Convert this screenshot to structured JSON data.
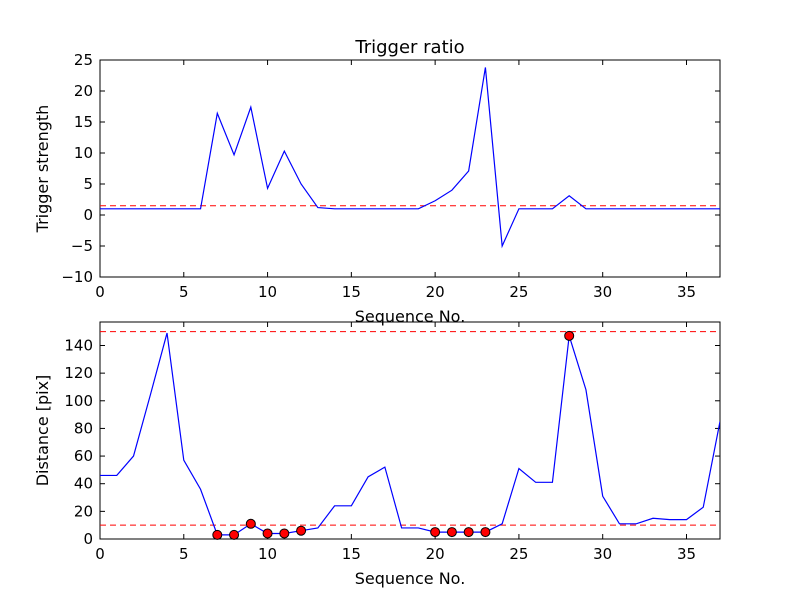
{
  "chart_data": [
    {
      "type": "line",
      "title": "Trigger ratio",
      "xlabel": "Sequence No.",
      "ylabel": "Trigger strength",
      "xlim": [
        0,
        37
      ],
      "ylim": [
        -10,
        25
      ],
      "xticks": [
        0,
        5,
        10,
        15,
        20,
        25,
        30,
        35
      ],
      "yticks": [
        -10,
        -5,
        0,
        5,
        10,
        15,
        20,
        25
      ],
      "x": [
        0,
        1,
        2,
        3,
        4,
        5,
        6,
        7,
        8,
        9,
        10,
        11,
        12,
        13,
        14,
        15,
        16,
        17,
        18,
        19,
        20,
        21,
        22,
        23,
        24,
        25,
        26,
        27,
        28,
        29,
        30,
        31,
        32,
        33,
        34,
        35,
        36,
        37
      ],
      "series": [
        {
          "color": "#0000ff",
          "values": [
            1,
            1,
            1,
            1,
            1,
            1,
            1,
            16.4,
            9.7,
            17.4,
            4.3,
            10.3,
            5.0,
            1.2,
            1,
            1,
            1,
            1,
            1,
            1,
            2.3,
            4.0,
            7.1,
            23.8,
            -5.0,
            1,
            1,
            1,
            3.1,
            1,
            1,
            1,
            1,
            1,
            1,
            1,
            1,
            1
          ]
        }
      ],
      "hlines": [
        {
          "y": 1.5,
          "color": "#ff0000",
          "style": "dashed"
        }
      ],
      "grid": false
    },
    {
      "type": "line",
      "title": "",
      "xlabel": "Sequence No.",
      "ylabel": "Distance [pix]",
      "xlim": [
        0,
        37
      ],
      "ylim": [
        0,
        157
      ],
      "xticks": [
        0,
        5,
        10,
        15,
        20,
        25,
        30,
        35
      ],
      "yticks": [
        0,
        20,
        40,
        60,
        80,
        100,
        120,
        140
      ],
      "x": [
        0,
        1,
        2,
        3,
        4,
        5,
        6,
        7,
        8,
        9,
        10,
        11,
        12,
        13,
        14,
        15,
        16,
        17,
        18,
        19,
        20,
        21,
        22,
        23,
        24,
        25,
        26,
        27,
        28,
        29,
        30,
        31,
        32,
        33,
        34,
        35,
        36,
        37
      ],
      "series": [
        {
          "color": "#0000ff",
          "values": [
            46,
            46,
            60,
            104,
            149,
            57,
            36,
            3,
            3,
            11,
            4,
            4,
            6,
            8,
            24,
            24,
            45,
            52,
            8,
            8,
            5,
            5,
            5,
            5,
            11,
            51,
            41,
            41,
            147,
            108,
            31,
            11,
            11,
            15,
            14,
            14,
            23,
            85
          ]
        }
      ],
      "markers": {
        "color": "#ff0000",
        "points": [
          [
            7,
            3
          ],
          [
            8,
            3
          ],
          [
            9,
            11
          ],
          [
            10,
            4
          ],
          [
            11,
            4
          ],
          [
            12,
            6
          ],
          [
            20,
            5
          ],
          [
            21,
            5
          ],
          [
            22,
            5
          ],
          [
            23,
            5
          ],
          [
            28,
            147
          ]
        ]
      },
      "hlines": [
        {
          "y": 150,
          "color": "#ff0000",
          "style": "dashed"
        },
        {
          "y": 10,
          "color": "#ff0000",
          "style": "dashed"
        }
      ],
      "grid": false
    }
  ]
}
